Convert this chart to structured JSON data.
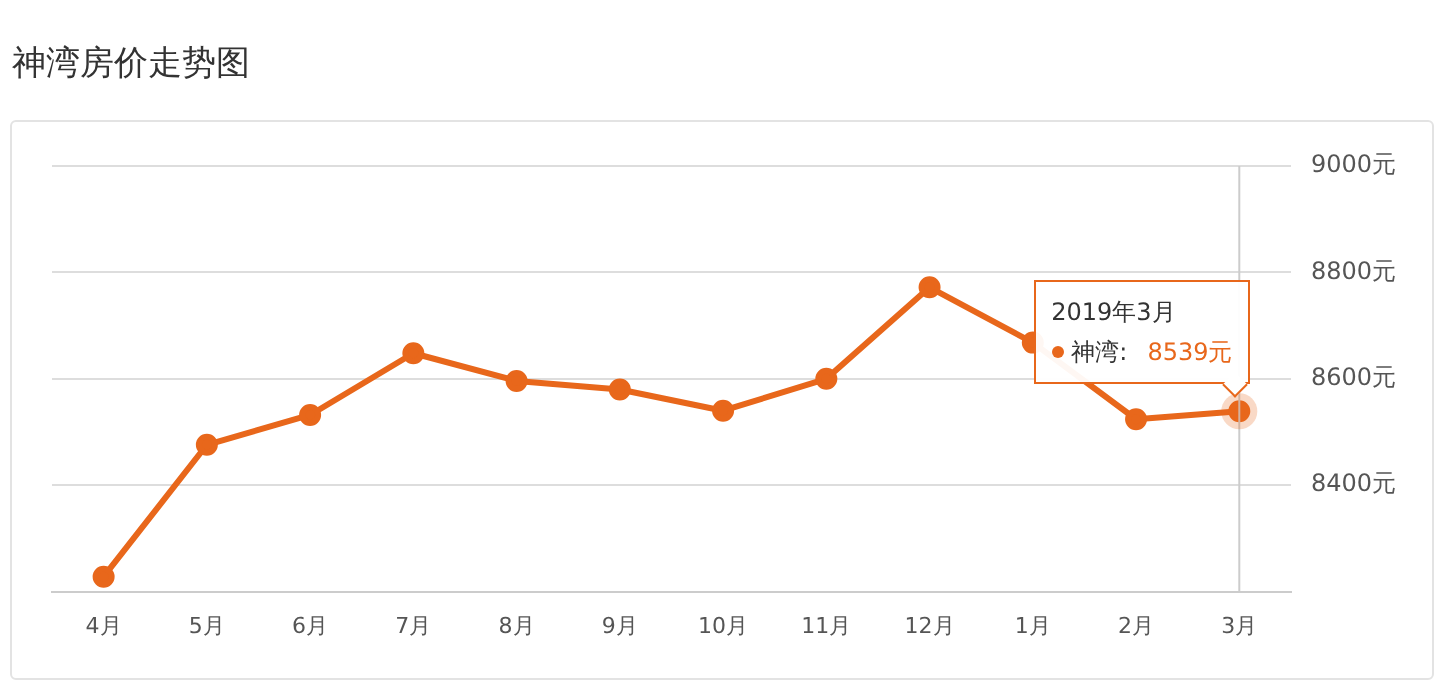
{
  "chart_data": {
    "type": "line",
    "title": "神湾房价走势图",
    "categories": [
      "4月",
      "5月",
      "6月",
      "7月",
      "8月",
      "9月",
      "10月",
      "11月",
      "12月",
      "1月",
      "2月",
      "3月"
    ],
    "series": [
      {
        "name": "神湾:",
        "color": "#e8671b",
        "values": [
          8228,
          8476,
          8532,
          8648,
          8596,
          8580,
          8540,
          8600,
          8772,
          8668,
          8524,
          8539
        ],
        "value_labels": [
          null,
          null,
          null,
          null,
          null,
          null,
          null,
          null,
          null,
          null,
          null,
          "8539元"
        ]
      }
    ],
    "ylim": [
      8200,
      9000
    ],
    "yticks": [
      {
        "value": 8200,
        "label": null
      },
      {
        "value": 8400,
        "label": "8400元"
      },
      {
        "value": 8600,
        "label": "8600元"
      },
      {
        "value": 8800,
        "label": "8800元"
      },
      {
        "value": 9000,
        "label": "9000元"
      }
    ],
    "grid": "y",
    "legend": "right",
    "marker": "circle",
    "line_style": "solid",
    "ref_lines": [
      {
        "axis": "x",
        "value": "3月",
        "color": "#cccccc"
      }
    ],
    "annotations": [
      "2019年3月"
    ]
  }
}
